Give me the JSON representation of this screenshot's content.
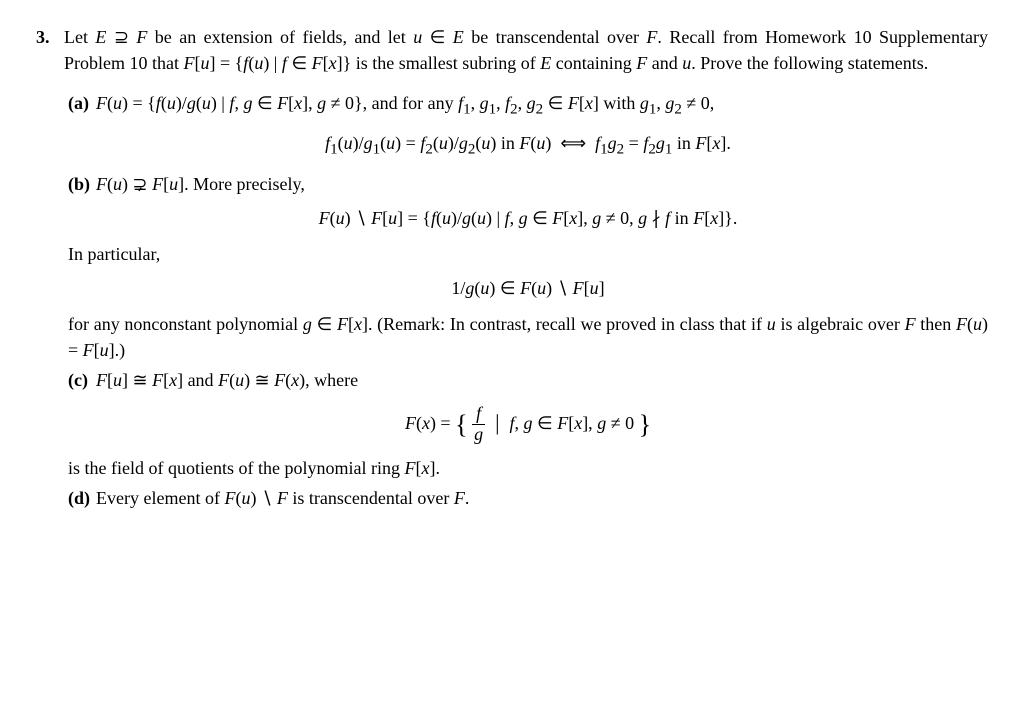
{
  "problem_number": "3.",
  "intro_html": "Let <span class='it'>E</span> ⊇ <span class='it'>F</span> be an extension of fields, and let <span class='it'>u</span> ∈ <span class='it'>E</span> be transcendental over <span class='it'>F</span>. Recall from Homework 10 Supplementary Problem 10 that <span class='it'>F</span>[<span class='it'>u</span>] = {<span class='it'>f</span>(<span class='it'>u</span>) | <span class='it'>f</span> ∈ <span class='it'>F</span>[<span class='it'>x</span>]} is the smallest subring of <span class='it'>E</span> containing <span class='it'>F</span> and <span class='it'>u</span>. Prove the following statements.",
  "parts": {
    "a": {
      "label": "(a)",
      "text_html": "<span class='it'>F</span>(<span class='it'>u</span>) = {<span class='it'>f</span>(<span class='it'>u</span>)/<span class='it'>g</span>(<span class='it'>u</span>) | <span class='it'>f</span>, <span class='it'>g</span> ∈ <span class='it'>F</span>[<span class='it'>x</span>], <span class='it'>g</span> ≠ 0}, and for any <span class='it'>f</span><sub>1</sub>, <span class='it'>g</span><sub>1</sub>, <span class='it'>f</span><sub>2</sub>, <span class='it'>g</span><sub>2</sub> ∈ <span class='it'>F</span>[<span class='it'>x</span>] with <span class='it'>g</span><sub>1</sub>, <span class='it'>g</span><sub>2</sub> ≠ 0,",
      "math_html": "<span class='it'>f</span><sub>1</sub>(<span class='it'>u</span>)/<span class='it'>g</span><sub>1</sub>(<span class='it'>u</span>) = <span class='it'>f</span><sub>2</sub>(<span class='it'>u</span>)/<span class='it'>g</span><sub>2</sub>(<span class='it'>u</span>) in <span class='it'>F</span>(<span class='it'>u</span>) &nbsp;⟺&nbsp; <span class='it'>f</span><sub>1</sub><span class='it'>g</span><sub>2</sub> = <span class='it'>f</span><sub>2</sub><span class='it'>g</span><sub>1</sub> in <span class='it'>F</span>[<span class='it'>x</span>]."
    },
    "b": {
      "label": "(b)",
      "text_html": "<span class='it'>F</span>(<span class='it'>u</span>) ⊋ <span class='it'>F</span>[<span class='it'>u</span>]. More precisely,",
      "math1_html": "<span class='it'>F</span>(<span class='it'>u</span>) ∖ <span class='it'>F</span>[<span class='it'>u</span>] = {<span class='it'>f</span>(<span class='it'>u</span>)/<span class='it'>g</span>(<span class='it'>u</span>) | <span class='it'>f</span>, <span class='it'>g</span> ∈ <span class='it'>F</span>[<span class='it'>x</span>], <span class='it'>g</span> ≠ 0, <span class='it'>g</span> ∤ <span class='it'>f</span> in <span class='it'>F</span>[<span class='it'>x</span>]}.",
      "inpart": "In particular,",
      "math2_html": "1/<span class='it'>g</span>(<span class='it'>u</span>) ∈ <span class='it'>F</span>(<span class='it'>u</span>) ∖ <span class='it'>F</span>[<span class='it'>u</span>]",
      "remark_html": "for any nonconstant polynomial <span class='it'>g</span> ∈ <span class='it'>F</span>[<span class='it'>x</span>]. (Remark: In contrast, recall we proved in class that if <span class='it'>u</span> is algebraic over <span class='it'>F</span> then <span class='it'>F</span>(<span class='it'>u</span>) = <span class='it'>F</span>[<span class='it'>u</span>].)"
    },
    "c": {
      "label": "(c)",
      "text_html": "<span class='it'>F</span>[<span class='it'>u</span>] ≅ <span class='it'>F</span>[<span class='it'>x</span>] and <span class='it'>F</span>(<span class='it'>u</span>) ≅ <span class='it'>F</span>(<span class='it'>x</span>), where",
      "math_html": "<span class='it'>F</span>(<span class='it'>x</span>) = <span style='font-size:26px;position:relative;top:4px'>{</span> <span style='display:inline-block;vertical-align:middle;'><span style='display:block;border-bottom:1px solid #000;padding:0 2px;text-align:center;line-height:1.1'><span class='it'>f</span></span><span style='display:block;padding:0 2px;text-align:center;line-height:1.1'><span class='it'>g</span></span></span> <span style='font-size:22px;position:relative;top:1px'>&nbsp;|&nbsp;</span> <span class='it'>f</span>, <span class='it'>g</span> ∈ <span class='it'>F</span>[<span class='it'>x</span>], <span class='it'>g</span> ≠ 0 <span style='font-size:26px;position:relative;top:4px'>}</span>",
      "tail_html": "is the field of quotients of the polynomial ring <span class='it'>F</span>[<span class='it'>x</span>]."
    },
    "d": {
      "label": "(d)",
      "text_html": "Every element of <span class='it'>F</span>(<span class='it'>u</span>) ∖ <span class='it'>F</span> is transcendental over <span class='it'>F</span>."
    }
  }
}
